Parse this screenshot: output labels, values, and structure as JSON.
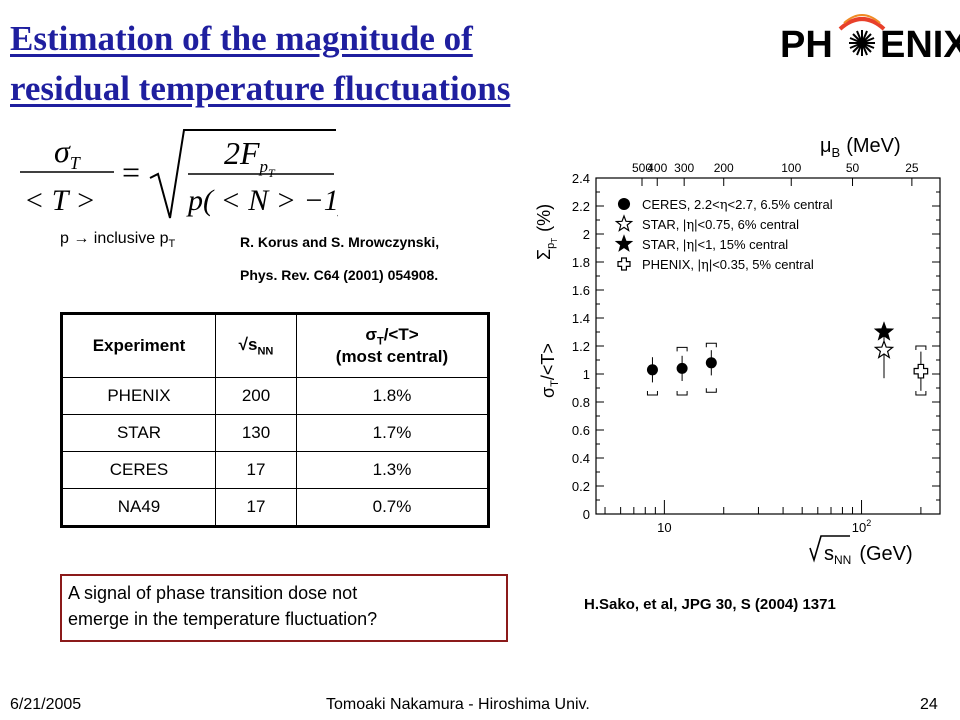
{
  "title": {
    "line1": "Estimation of the magnitude of",
    "line2": "residual temperature fluctuations"
  },
  "logo": {
    "left": "PH",
    "right": "ENIX",
    "icon": "sunburst-icon",
    "color": "#000000"
  },
  "formula": {
    "lhs_num": "σ",
    "lhs_num_sub": "T",
    "lhs_den": "< T >",
    "eq": "=",
    "rhs_num": "2F",
    "rhs_num_sub": "p",
    "rhs_num_subsub": "T",
    "rhs_den": "p( < N > −1)"
  },
  "p_note": {
    "text": "p → inclusive p",
    "sub": "T"
  },
  "reference1": {
    "line1": "R. Korus and S. Mrowczynski,",
    "line2": "Phys. Rev. C64 (2001) 054908."
  },
  "table": {
    "headers": {
      "experiment": "Experiment",
      "energy": "√s",
      "energy_sub": "NN",
      "ratio_sigma": "σ",
      "ratio_sub": "T",
      "ratio_rest": "/<T>",
      "ratio_line2": "(most central)"
    },
    "rows": [
      {
        "experiment": "PHENIX",
        "energy": "200",
        "ratio": "1.8%"
      },
      {
        "experiment": "STAR",
        "energy": "130",
        "ratio": "1.7%"
      },
      {
        "experiment": "CERES",
        "energy": "17",
        "ratio": "1.3%"
      },
      {
        "experiment": "NA49",
        "energy": "17",
        "ratio": "0.7%"
      }
    ]
  },
  "note": {
    "line1": "A signal of phase transition dose not",
    "line2": "emerge in the temperature fluctuation?",
    "border_color": "#8b1a1a"
  },
  "reference2": "H.Sako, et al, JPG 30, S (2004) 1371",
  "chart_data": {
    "type": "scatter",
    "title": "",
    "top_axis_label_mu": "μ",
    "top_axis_label_sub": "B",
    "top_axis_label_rest": "(MeV)",
    "top_ticks": [
      {
        "label": "500",
        "sqrt_s": 7.7
      },
      {
        "label": "400",
        "sqrt_s": 9.2
      },
      {
        "label": "300",
        "sqrt_s": 12.6
      },
      {
        "label": "200",
        "sqrt_s": 20
      },
      {
        "label": "100",
        "sqrt_s": 44
      },
      {
        "label": "50",
        "sqrt_s": 90
      },
      {
        "label": "25",
        "sqrt_s": 180
      }
    ],
    "xlabel_sqrt": "√",
    "xlabel_s": "s",
    "xlabel_sub": "NN",
    "xlabel_rest": "(GeV)",
    "x_scale": "log",
    "xlim": [
      4.5,
      250
    ],
    "x_major_ticks": [
      {
        "label": "10",
        "value": 10
      },
      {
        "label": "10",
        "sup": "2",
        "value": 100
      }
    ],
    "ylabel_left_sigma": "σ",
    "ylabel_left_sub": "T",
    "ylabel_left_rest": "/<T>",
    "ylabel_right_sigma": "Σ",
    "ylabel_right_sub": "p",
    "ylabel_right_subsub": "T",
    "ylabel_right_rest": "(%)",
    "ylim": [
      0,
      2.4
    ],
    "y_ticks": [
      "0",
      "0.2",
      "0.4",
      "0.6",
      "0.8",
      "1",
      "1.2",
      "1.4",
      "1.6",
      "1.8",
      "2",
      "2.2",
      "2.4"
    ],
    "legend_position": "top-left",
    "series": [
      {
        "name": "CERES, 2.2<η<2.7, 6.5% central",
        "marker": "filled-circle",
        "points": [
          {
            "x": 8.7,
            "y": 1.03,
            "err": 0.09,
            "sys_lo": 0.85,
            "sys_hi": null
          },
          {
            "x": 12.3,
            "y": 1.04,
            "err": 0.09,
            "sys_lo": 0.85,
            "sys_hi": 1.19
          },
          {
            "x": 17.3,
            "y": 1.08,
            "err": 0.09,
            "sys_lo": 0.87,
            "sys_hi": 1.22
          }
        ]
      },
      {
        "name": "STAR, |η|<0.75, 6% central",
        "marker": "open-star",
        "points": [
          {
            "x": 130,
            "y": 1.17,
            "err": 0.2
          }
        ]
      },
      {
        "name": "STAR, |η|<1, 15% central",
        "marker": "filled-star",
        "points": [
          {
            "x": 130,
            "y": 1.3,
            "err": 0
          }
        ]
      },
      {
        "name": "PHENIX, |η|<0.35, 5% central",
        "marker": "open-cross",
        "points": [
          {
            "x": 200,
            "y": 1.02,
            "err": 0.14,
            "sys_lo": 0.85,
            "sys_hi": 1.2
          }
        ]
      }
    ],
    "legend_texts": [
      {
        "a": "CERES, 2.2<",
        "b": "η",
        "c": "<2.7, 6.5% central"
      },
      {
        "a": "STAR, |",
        "b": "η",
        "c": "|<0.75, 6% central"
      },
      {
        "a": "STAR, |",
        "b": "η",
        "c": "|<1, 15% central"
      },
      {
        "a": "PHENIX, |",
        "b": "η",
        "c": "|<0.35, 5% central"
      }
    ]
  },
  "footer": {
    "date": "6/21/2005",
    "center": "Tomoaki Nakamura - Hiroshima Univ.",
    "page": "24"
  }
}
